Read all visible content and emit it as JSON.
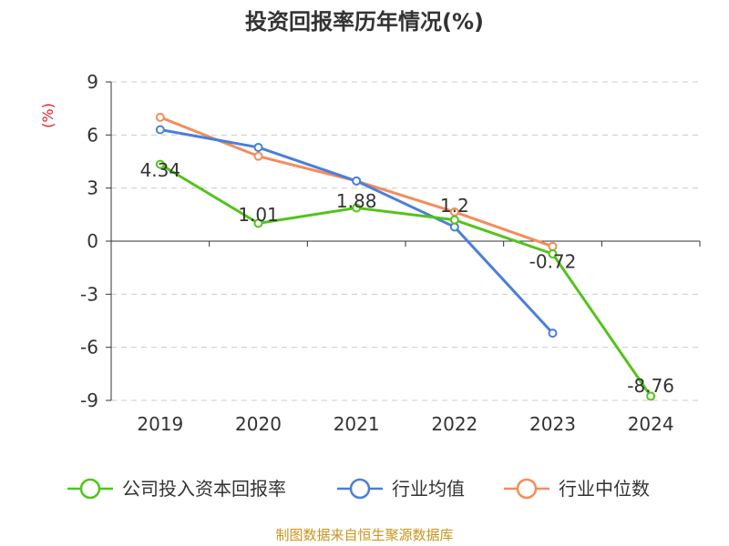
{
  "chart_data": {
    "type": "line",
    "title": "投资回报率历年情况(%)",
    "unit_label": "(%)",
    "categories": [
      "2019",
      "2020",
      "2021",
      "2022",
      "2023",
      "2024"
    ],
    "ylim": [
      -9,
      9
    ],
    "yticks": [
      "9",
      "6",
      "3",
      "0",
      "-3",
      "-6",
      "-9"
    ],
    "ytick_values": [
      9,
      6,
      3,
      0,
      -3,
      -6,
      -9
    ],
    "grid": true,
    "legend_position": "bottom",
    "series": [
      {
        "name": "公司投入资本回报率",
        "color": "#52c41a",
        "values": [
          4.34,
          1.01,
          1.88,
          1.2,
          -0.72,
          -8.76
        ],
        "labels": [
          "4.34",
          "1.01",
          "1.88",
          "1.2",
          "-0.72",
          "-8.76"
        ]
      },
      {
        "name": "行业均值",
        "color": "#4a7fdb",
        "values": [
          6.3,
          5.3,
          3.4,
          0.8,
          -5.2,
          null
        ],
        "labels": []
      },
      {
        "name": "行业中位数",
        "color": "#f58c5a",
        "values": [
          7.0,
          4.8,
          3.4,
          1.65,
          -0.3,
          null
        ],
        "labels": []
      }
    ],
    "source": "制图数据来自恒生聚源数据库"
  }
}
